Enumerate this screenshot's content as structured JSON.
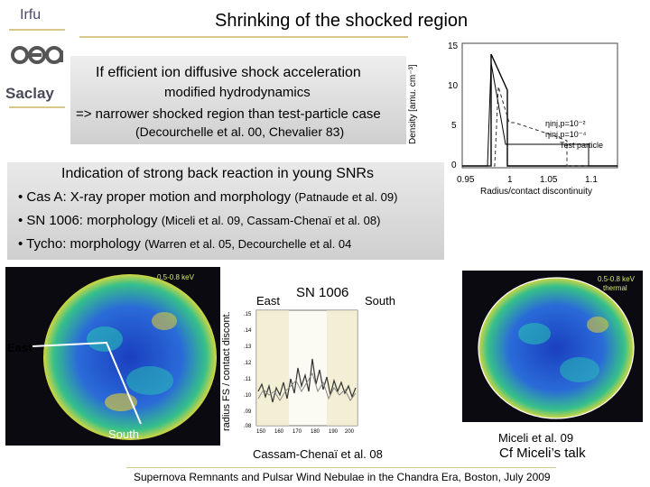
{
  "header": {
    "brand": "Irfu",
    "lab": "Saclay",
    "title": "Shrinking of the shocked region"
  },
  "top_box": {
    "line1": "If efficient ion diffusive shock acceleration",
    "line2": "modified hydrodynamics",
    "line3": "=> narrower shocked region than test-particle case",
    "line4": "(Decourchelle et al. 00, Chevalier 83)"
  },
  "density_plot": {
    "ylabel": "Density [amu. cm⁻³]",
    "xlabel": "Radius/contact discontinuity",
    "yticks": [
      "15",
      "10",
      "5",
      "0"
    ],
    "xticks": [
      "0.95",
      "1",
      "1.05",
      "1.1"
    ],
    "annotation1": "ηinj,p=10⁻²",
    "annotation2": "ηinj,p=10⁻⁴",
    "annotation3": "Test particle"
  },
  "mid_box": {
    "heading": "Indication of strong back reaction in young SNRs",
    "bullets": [
      {
        "name": "Cas A",
        "text": ": X-ray proper motion and morphology",
        "ref": "(Patnaude et al. 09)"
      },
      {
        "name": "SN 1006",
        "text": ": morphology",
        "ref": "(Miceli et al. 09, Cassam-Chenaï et al. 08)"
      },
      {
        "name": "Tycho",
        "text": ": morphology",
        "ref": "(Warren et al. 05, Decourchelle et al. 04"
      }
    ]
  },
  "images": {
    "left_east": "East",
    "left_south": "South",
    "left_band": "0.5-0.8 keV",
    "right_band": "0.5-0.8 keV",
    "right_thermal": "thermal"
  },
  "profile": {
    "east": "East",
    "target": "SN 1006",
    "south": "South",
    "ylabel": "radius FS / contact discont.",
    "yticks": [
      ".15",
      ".14",
      ".13",
      ".12",
      ".11",
      ".10",
      ".09",
      ".08"
    ],
    "xticks": [
      "150",
      "160",
      "170",
      "180",
      "190",
      "200"
    ],
    "citation": "Cassam-Chenaï et al. 08"
  },
  "right_caption": {
    "citation": "Miceli et al. 09",
    "talk": "Cf Miceli’s talk"
  },
  "footer": "Supernova Remnants and Pulsar Wind Nebulae in the Chandra Era, Boston, July 2009"
}
